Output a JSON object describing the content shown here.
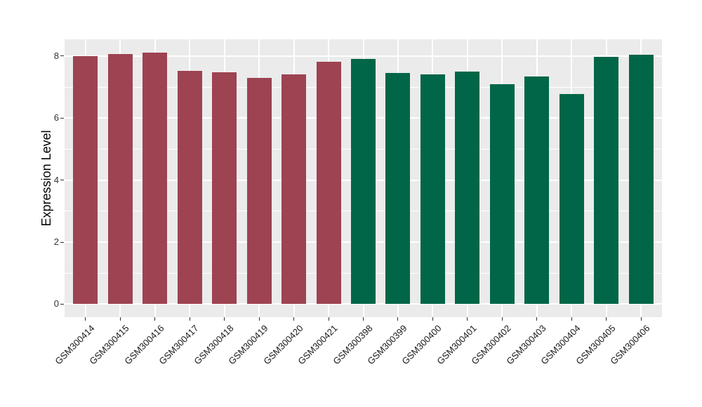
{
  "chart_data": {
    "type": "bar",
    "title": "",
    "xlabel": "",
    "ylabel": "Expression Level",
    "categories": [
      "GSM300414",
      "GSM300415",
      "GSM300416",
      "GSM300417",
      "GSM300418",
      "GSM300419",
      "GSM300420",
      "GSM300421",
      "GSM300398",
      "GSM300399",
      "GSM300400",
      "GSM300401",
      "GSM300402",
      "GSM300403",
      "GSM300404",
      "GSM300405",
      "GSM300406"
    ],
    "values": [
      8.0,
      8.07,
      8.12,
      7.53,
      7.47,
      7.29,
      7.41,
      7.82,
      7.9,
      7.45,
      7.4,
      7.51,
      7.09,
      7.33,
      6.77,
      7.98,
      8.05
    ],
    "groups": [
      "group1",
      "group1",
      "group1",
      "group1",
      "group1",
      "group1",
      "group1",
      "group1",
      "group2",
      "group2",
      "group2",
      "group2",
      "group2",
      "group2",
      "group2",
      "group2",
      "group2"
    ],
    "group_colors": {
      "group1": "#9D4351",
      "group2": "#006647"
    },
    "yticks": [
      0,
      2,
      4,
      6,
      8
    ],
    "yticks_minor": [
      1,
      3,
      5,
      7
    ],
    "ylim": [
      -0.42,
      8.54
    ],
    "grid": true,
    "legend_position": "none",
    "panel_bg": "#EBEBEB",
    "grid_color": "#FFFFFF",
    "tick_color": "#333333"
  }
}
